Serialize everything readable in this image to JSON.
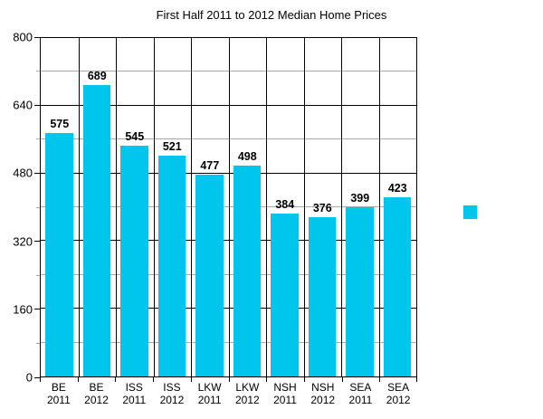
{
  "chart_data": {
    "type": "bar",
    "title": "First Half 2011 to 2012 Median Home Prices",
    "categories": [
      "BE 2011",
      "BE 2012",
      "ISS 2011",
      "ISS 2012",
      "LKW 2011",
      "LKW 2012",
      "NSH 2011",
      "NSH 2012",
      "SEA 2011",
      "SEA 2012"
    ],
    "values": [
      575,
      689,
      545,
      521,
      477,
      498,
      384,
      376,
      399,
      423
    ],
    "xlabel": "",
    "ylabel": "",
    "ylim": [
      0,
      800
    ],
    "yticks": [
      "0",
      "160",
      "320",
      "480",
      "640",
      "800"
    ],
    "ytick_interval": 160,
    "grid_interval": 80,
    "grid": true,
    "legend_position": "right",
    "legend_label": "",
    "colors": {
      "bar": "#00C6EE",
      "grid_major": "#000000",
      "grid_minor": "#A8A8A8",
      "axis": "#000000",
      "text": "#000000"
    }
  }
}
